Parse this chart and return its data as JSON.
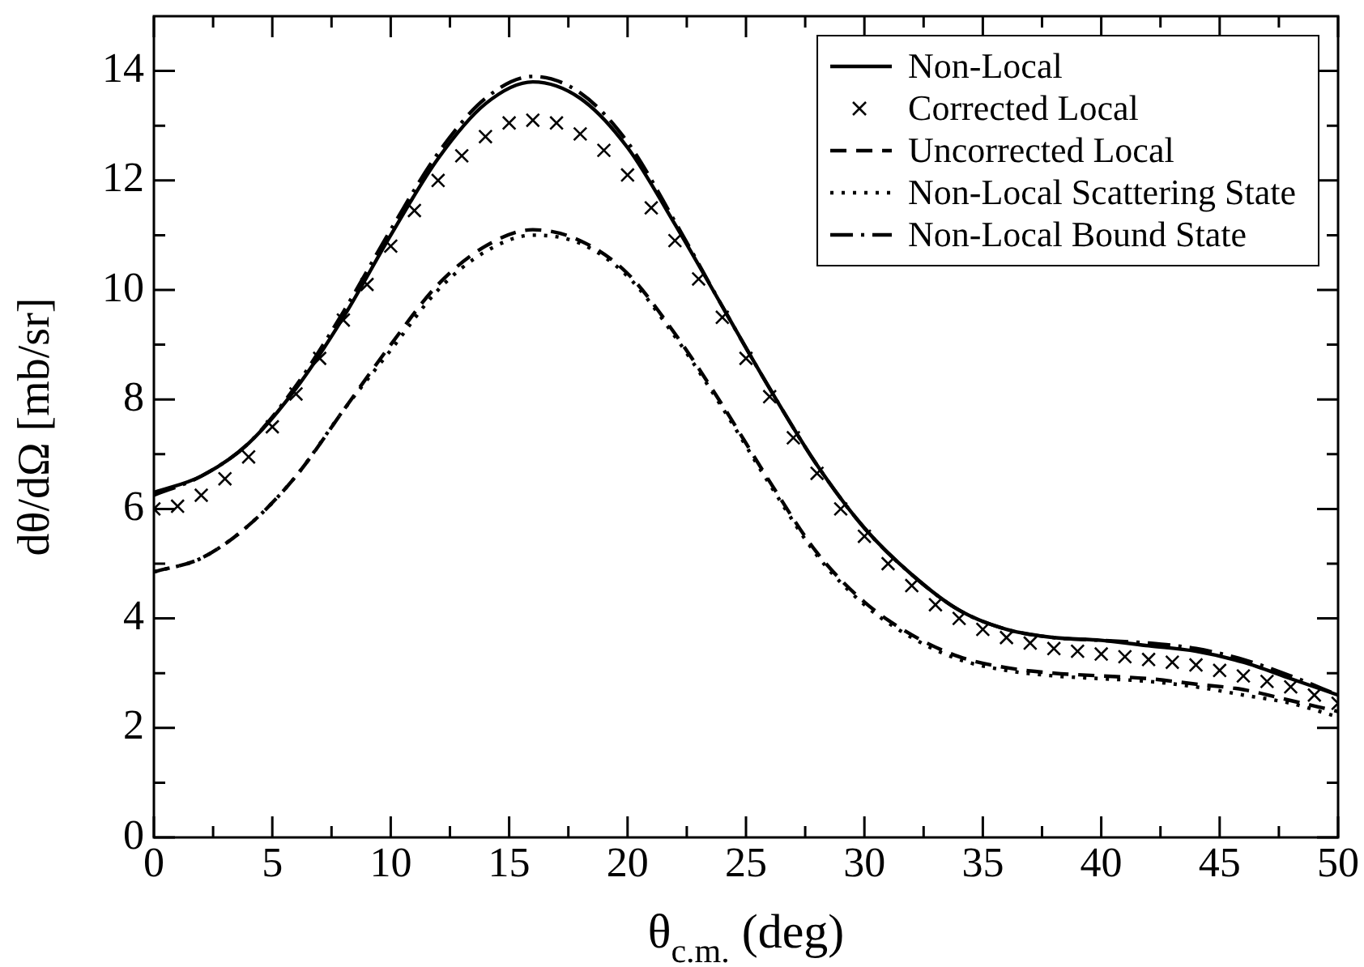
{
  "chart_data": {
    "type": "line",
    "xlabel": "θ$_{c.m.}$ (deg)",
    "ylabel": "dθ/dΩ [mb/sr]",
    "xlim": [
      0,
      50
    ],
    "ylim": [
      0,
      15
    ],
    "xticks": [
      0,
      {
        "value": 2.5,
        "label": null
      },
      5,
      {
        "value": 7.5,
        "label": null
      },
      10,
      {
        "value": 12.5,
        "label": null
      },
      15,
      {
        "value": 17.5,
        "label": null
      },
      20,
      {
        "value": 22.5,
        "label": null
      },
      25,
      {
        "value": 27.5,
        "label": null
      },
      30,
      {
        "value": 32.5,
        "label": null
      },
      35,
      {
        "value": 37.5,
        "label": null
      },
      40,
      {
        "value": 42.5,
        "label": null
      },
      45,
      {
        "value": 47.5,
        "label": null
      },
      50
    ],
    "yticks": [
      0,
      {
        "value": 1,
        "label": null
      },
      2,
      {
        "value": 3,
        "label": null
      },
      4,
      {
        "value": 5,
        "label": null
      },
      6,
      {
        "value": 7,
        "label": null
      },
      8,
      {
        "value": 9,
        "label": null
      },
      10,
      {
        "value": 11,
        "label": null
      },
      12,
      {
        "value": 13,
        "label": null
      },
      14
    ],
    "grid": false,
    "legend": "top right",
    "series": [
      {
        "name": "Non-Local",
        "color": "#000000",
        "line_style": "solid",
        "marker": "none",
        "x": [
          0,
          2,
          4,
          6,
          8,
          10,
          12,
          14,
          16,
          18,
          20,
          22,
          24,
          26,
          28,
          30,
          32,
          34,
          36,
          38,
          40,
          42,
          44,
          46,
          48,
          50
        ],
        "values": [
          6.3,
          6.6,
          7.2,
          8.2,
          9.5,
          11.0,
          12.4,
          13.4,
          13.8,
          13.5,
          12.6,
          11.2,
          9.7,
          8.2,
          6.8,
          5.65,
          4.8,
          4.15,
          3.8,
          3.65,
          3.6,
          3.5,
          3.4,
          3.2,
          2.9,
          2.6
        ]
      },
      {
        "name": "Corrected Local",
        "color": "#000000",
        "type": "scatter",
        "marker": "cross",
        "x": [
          0,
          1,
          2,
          3,
          4,
          5,
          6,
          7,
          8,
          9,
          10,
          11,
          12,
          13,
          14,
          15,
          16,
          17,
          18,
          19,
          20,
          21,
          22,
          23,
          24,
          25,
          26,
          27,
          28,
          29,
          30,
          31,
          32,
          33,
          34,
          35,
          36,
          37,
          38,
          39,
          40,
          41,
          42,
          43,
          44,
          45,
          46,
          47,
          48,
          49,
          50
        ],
        "values": [
          6.0,
          6.05,
          6.25,
          6.55,
          6.95,
          7.5,
          8.1,
          8.75,
          9.45,
          10.1,
          10.8,
          11.45,
          12.0,
          12.45,
          12.8,
          13.05,
          13.1,
          13.05,
          12.85,
          12.55,
          12.1,
          11.5,
          10.9,
          10.2,
          9.5,
          8.75,
          8.05,
          7.3,
          6.65,
          6.0,
          5.5,
          5.0,
          4.6,
          4.25,
          4.0,
          3.8,
          3.65,
          3.55,
          3.45,
          3.4,
          3.35,
          3.3,
          3.25,
          3.2,
          3.15,
          3.05,
          2.95,
          2.85,
          2.75,
          2.6,
          2.45
        ]
      },
      {
        "name": "Uncorrected Local",
        "color": "#000000",
        "line_style": "dashed",
        "marker": "none",
        "x": [
          0,
          2,
          4,
          6,
          8,
          10,
          12,
          14,
          16,
          18,
          20,
          22,
          24,
          26,
          28,
          30,
          32,
          34,
          36,
          38,
          40,
          42,
          44,
          46,
          48,
          50
        ],
        "values": [
          4.85,
          5.1,
          5.7,
          6.6,
          7.8,
          9.0,
          10.1,
          10.8,
          11.1,
          10.9,
          10.3,
          9.2,
          7.9,
          6.5,
          5.2,
          4.3,
          3.7,
          3.3,
          3.1,
          3.0,
          2.95,
          2.9,
          2.8,
          2.7,
          2.5,
          2.3
        ]
      },
      {
        "name": "Non-Local Scattering State",
        "color": "#000000",
        "line_style": "dotted",
        "marker": "none",
        "x": [
          0,
          2,
          4,
          6,
          8,
          10,
          12,
          14,
          16,
          18,
          20,
          22,
          24,
          26,
          28,
          30,
          32,
          34,
          36,
          38,
          40,
          42,
          44,
          46,
          48,
          50
        ],
        "values": [
          4.85,
          5.1,
          5.7,
          6.6,
          7.8,
          8.9,
          10.0,
          10.7,
          11.0,
          10.85,
          10.25,
          9.15,
          7.85,
          6.45,
          5.15,
          4.25,
          3.65,
          3.25,
          3.05,
          2.95,
          2.9,
          2.85,
          2.75,
          2.6,
          2.45,
          2.2
        ]
      },
      {
        "name": "Non-Local Bound State",
        "color": "#000000",
        "line_style": "dashdot",
        "marker": "none",
        "x": [
          0,
          2,
          4,
          6,
          8,
          10,
          12,
          14,
          16,
          18,
          20,
          22,
          24,
          26,
          28,
          30,
          32,
          34,
          36,
          38,
          40,
          42,
          44,
          46,
          48,
          50
        ],
        "values": [
          6.25,
          6.6,
          7.2,
          8.25,
          9.6,
          11.1,
          12.5,
          13.5,
          13.9,
          13.6,
          12.7,
          11.25,
          9.7,
          8.2,
          6.8,
          5.65,
          4.8,
          4.15,
          3.8,
          3.65,
          3.6,
          3.55,
          3.45,
          3.25,
          2.95,
          2.6
        ]
      }
    ]
  }
}
